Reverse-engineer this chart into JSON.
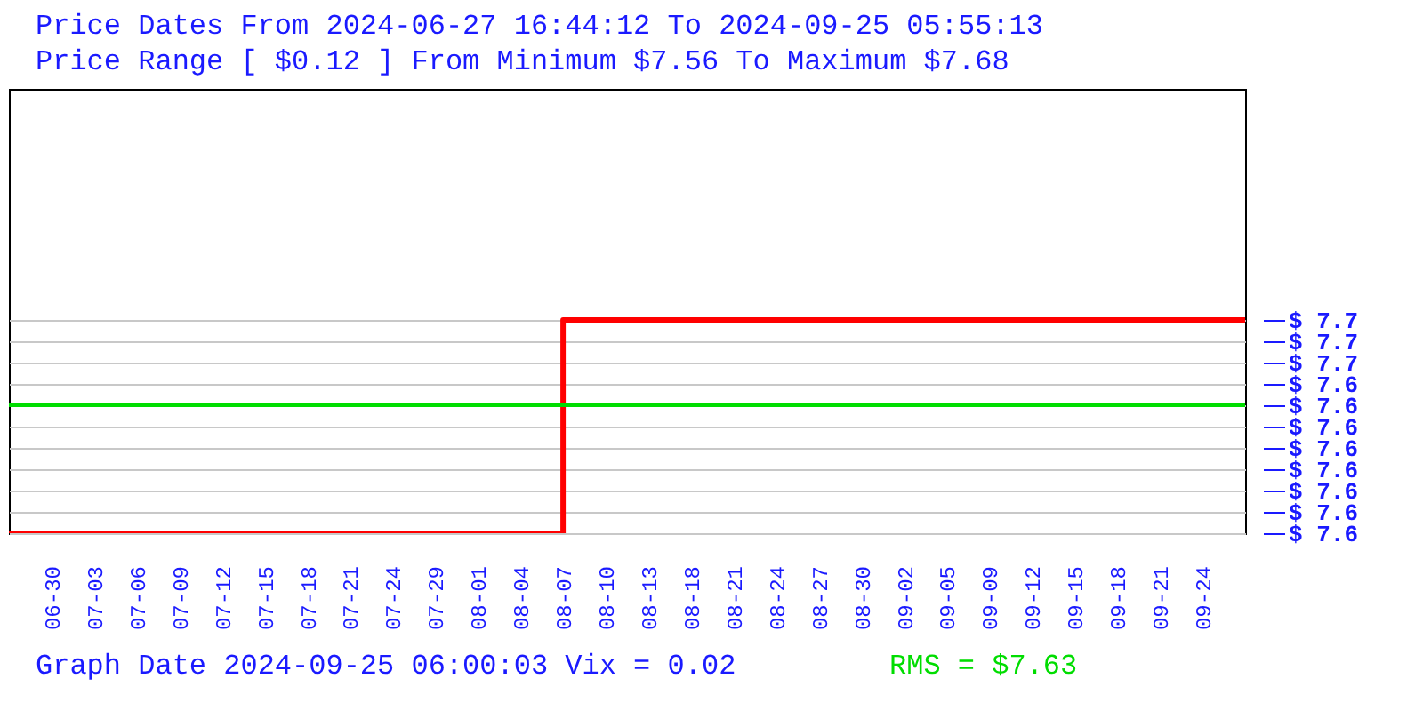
{
  "chart_data": {
    "type": "step",
    "title": "Price Dates From 2024-06-27 16:44:12 To 2024-09-25 05:55:13",
    "subtitle": "Price Range [ $0.12 ] From Minimum $7.56 To Maximum $7.68",
    "categories": [
      null,
      "06-30",
      "07-03",
      "07-06",
      "07-09",
      "07-12",
      "07-15",
      "07-18",
      "07-21",
      "07-24",
      "07-29",
      "08-01",
      "08-04",
      "08-07",
      "08-10",
      "08-13",
      "08-18",
      "08-21",
      "08-24",
      "08-27",
      "08-30",
      "09-02",
      "09-05",
      "09-09",
      "09-12",
      "09-15",
      "09-18",
      "09-21",
      "09-24",
      null
    ],
    "series": [
      {
        "color": "#ff0000",
        "values": [
          7.56,
          7.56,
          7.56,
          7.56,
          7.56,
          7.56,
          7.56,
          7.56,
          7.56,
          7.56,
          7.56,
          7.56,
          7.56,
          7.68,
          7.68,
          7.68,
          7.68,
          7.68,
          7.68,
          7.68,
          7.68,
          7.68,
          7.68,
          7.68,
          7.68,
          7.68,
          7.68,
          7.68,
          7.68,
          7.68
        ]
      }
    ],
    "ylim": [
      7.56,
      7.81
    ],
    "yticks": [
      {
        "value": 7.56,
        "label": "$ 7.6"
      },
      {
        "value": 7.572,
        "label": "$ 7.6"
      },
      {
        "value": 7.584,
        "label": "$ 7.6"
      },
      {
        "value": 7.596,
        "label": "$ 7.6"
      },
      {
        "value": 7.608,
        "label": "$ 7.6"
      },
      {
        "value": 7.62,
        "label": "$ 7.6"
      },
      {
        "value": 7.632,
        "label": "$ 7.6"
      },
      {
        "value": 7.644,
        "label": "$ 7.6"
      },
      {
        "value": 7.656,
        "label": "$ 7.7"
      },
      {
        "value": 7.668,
        "label": "$ 7.7"
      },
      {
        "value": 7.68,
        "label": "$ 7.7"
      }
    ],
    "grid": "y",
    "ref_lines": [
      {
        "axis": "y",
        "value": 7.632,
        "label": "RMS = $7.63",
        "color": "#00dd00"
      }
    ],
    "annotations": [
      "Graph Date 2024-09-25 06:00:03 Vix = 0.02"
    ]
  }
}
